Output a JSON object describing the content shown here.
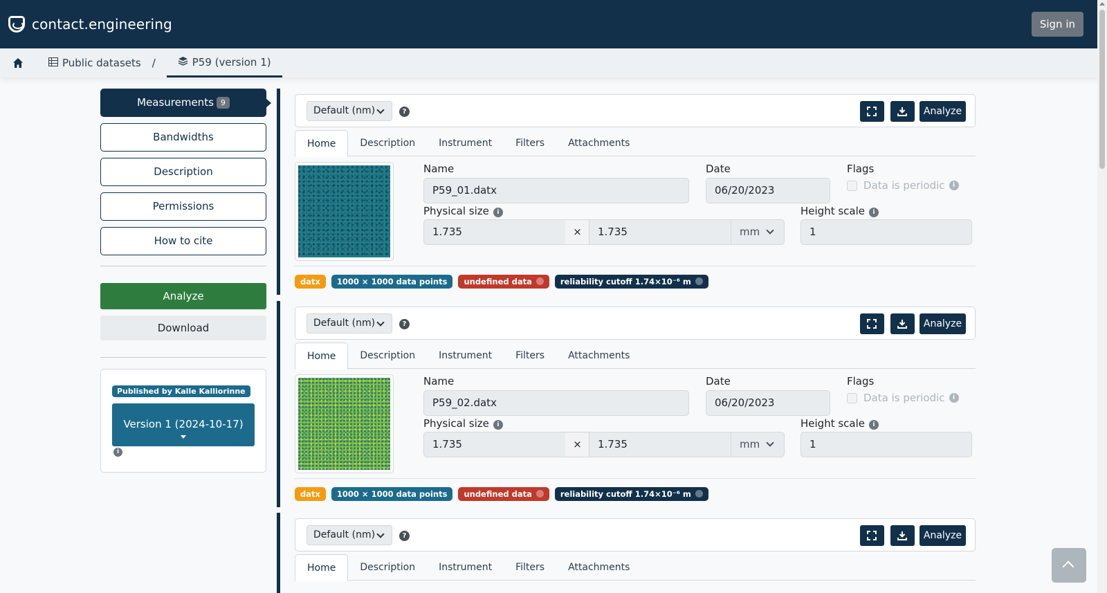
{
  "app": {
    "brand": "contact.engineering",
    "signin_label": "Sign in"
  },
  "breadcrumb": {
    "items": [
      {
        "label": "Public datasets",
        "icon": "table-icon"
      },
      {
        "label": "P59 (version 1)",
        "icon": "layers-icon"
      }
    ],
    "separator": "/"
  },
  "sidebar": {
    "measurements_label": "Measurements",
    "measurements_count": "9",
    "bandwidths_label": "Bandwidths",
    "description_label": "Description",
    "permissions_label": "Permissions",
    "cite_label": "How to cite",
    "analyze_label": "Analyze",
    "download_label": "Download",
    "published_by": "Published by Kalle Kalliorinne",
    "version_label": "Version 1 (2024-10-17)"
  },
  "card_common": {
    "unit_select": "Default (nm)",
    "analyze_label": "Analyze",
    "tabs": [
      "Home",
      "Description",
      "Instrument",
      "Filters",
      "Attachments"
    ],
    "name_label": "Name",
    "date_label": "Date",
    "flags_label": "Flags",
    "periodic_label": "Data is periodic",
    "physical_size_label": "Physical size",
    "height_scale_label": "Height scale",
    "times": "×"
  },
  "measurements": [
    {
      "name": "P59_01.datx",
      "date": "06/20/2023",
      "size_x": "1.735",
      "size_y": "1.735",
      "unit": "mm",
      "height_scale": "1",
      "tags": {
        "format": "datx",
        "points": "1000 × 1000 data points",
        "undefined": "undefined data",
        "cutoff": "reliability cutoff 1.74×10⁻⁶ m"
      }
    },
    {
      "name": "P59_02.datx",
      "date": "06/20/2023",
      "size_x": "1.735",
      "size_y": "1.735",
      "unit": "mm",
      "height_scale": "1",
      "tags": {
        "format": "datx",
        "points": "1000 × 1000 data points",
        "undefined": "undefined data",
        "cutoff": "reliability cutoff 1.74×10⁻⁶ m"
      }
    }
  ],
  "colors": {
    "navy": "#12304a",
    "green": "#2e7d3e",
    "teal": "#1c6b8d",
    "orange": "#f39c12",
    "red": "#c0392b"
  }
}
